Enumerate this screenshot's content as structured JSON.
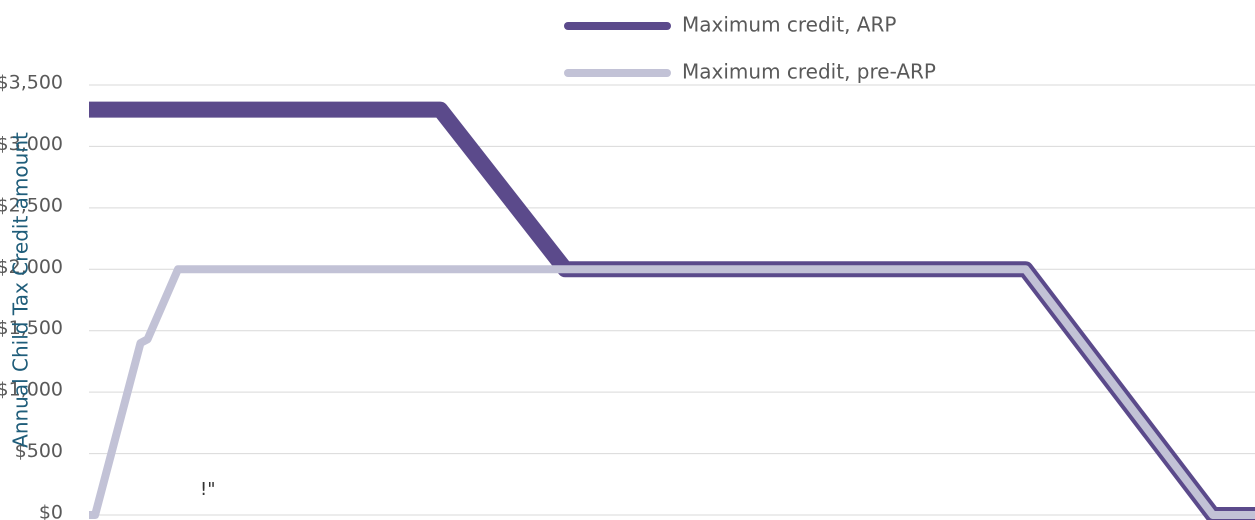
{
  "chart_data": {
    "type": "line",
    "y_label": "Annual Child Tax Credit amount",
    "annotations": [
      "!\""
    ],
    "series": [
      {
        "name": "Maximum credit, ARP",
        "color": "#5b4a8b",
        "width": 16,
        "x": [
          0,
          75,
          101.7,
          200,
          240,
          249
        ],
        "values": [
          3300,
          3300,
          2000,
          2000,
          0,
          0
        ]
      },
      {
        "name": "Maximum credit, pre-ARP",
        "color": "#c2c2d6",
        "width": 8,
        "x": [
          0,
          1.3,
          11,
          12.5,
          19,
          200,
          240,
          249
        ],
        "values": [
          0,
          0,
          1400,
          1430,
          2000,
          2000,
          0,
          0
        ]
      }
    ],
    "xlim": [
      0,
      249
    ],
    "ylim": [
      0,
      3500
    ],
    "yticks": [
      0,
      {
        "value": 500,
        "label": "$500"
      },
      {
        "value": 1000,
        "label": "$1,000"
      },
      {
        "value": 1500,
        "label": "$1,500"
      },
      {
        "value": 2000,
        "label": "$2,000"
      },
      {
        "value": 2500,
        "label": "$2,500"
      },
      {
        "value": 3000,
        "label": "$3,000"
      },
      {
        "value": 3500,
        "label": "$3,500"
      }
    ],
    "zero_label": "$0",
    "grid": true
  }
}
